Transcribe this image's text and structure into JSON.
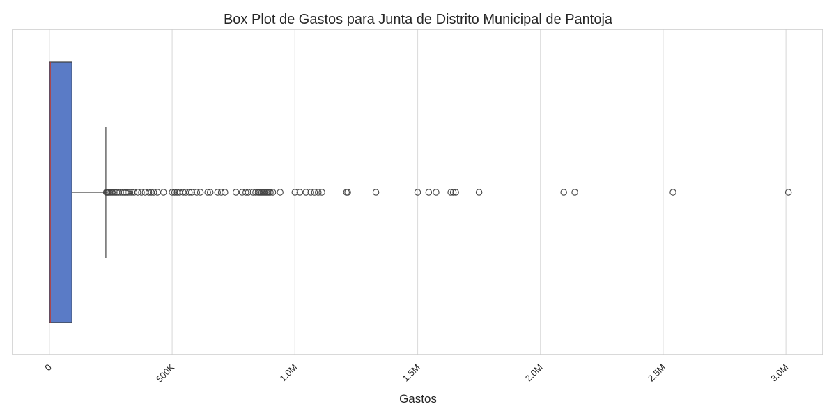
{
  "chart_data": {
    "type": "box",
    "orientation": "horizontal",
    "title": "Box Plot de Gastos para Junta de Distrito Municipal de Pantoja",
    "xlabel": "Gastos",
    "ylabel": "",
    "xlim": [
      -150000,
      3150000
    ],
    "xticks": [
      0,
      500000,
      1000000,
      1500000,
      2000000,
      2500000,
      3000000
    ],
    "xtick_labels": [
      "0",
      "500K",
      "1.0M",
      "1.5M",
      "2.0M",
      "2.5M",
      "3.0M"
    ],
    "grid": "vertical",
    "box_color": "#5a7bc6",
    "median_color": "#c0392b",
    "box": {
      "min": 0,
      "q1": 0,
      "median": 4000,
      "q3": 92000,
      "whisker_high": 230000
    },
    "outliers": [
      232000,
      235000,
      238000,
      241000,
      245000,
      250000,
      256000,
      262000,
      268000,
      275000,
      282000,
      290000,
      298000,
      305000,
      312000,
      320000,
      328000,
      336000,
      345000,
      360000,
      375000,
      390000,
      405000,
      415000,
      425000,
      440000,
      465000,
      500000,
      510000,
      520000,
      530000,
      545000,
      555000,
      570000,
      580000,
      600000,
      615000,
      645000,
      655000,
      685000,
      700000,
      715000,
      760000,
      785000,
      800000,
      810000,
      830000,
      840000,
      850000,
      855000,
      860000,
      865000,
      870000,
      875000,
      880000,
      885000,
      890000,
      895000,
      900000,
      910000,
      940000,
      1000000,
      1020000,
      1045000,
      1065000,
      1080000,
      1095000,
      1110000,
      1210000,
      1215000,
      1330000,
      1500000,
      1545000,
      1575000,
      1635000,
      1645000,
      1655000,
      1750000,
      2095000,
      2140000,
      2540000,
      3010000
    ]
  }
}
